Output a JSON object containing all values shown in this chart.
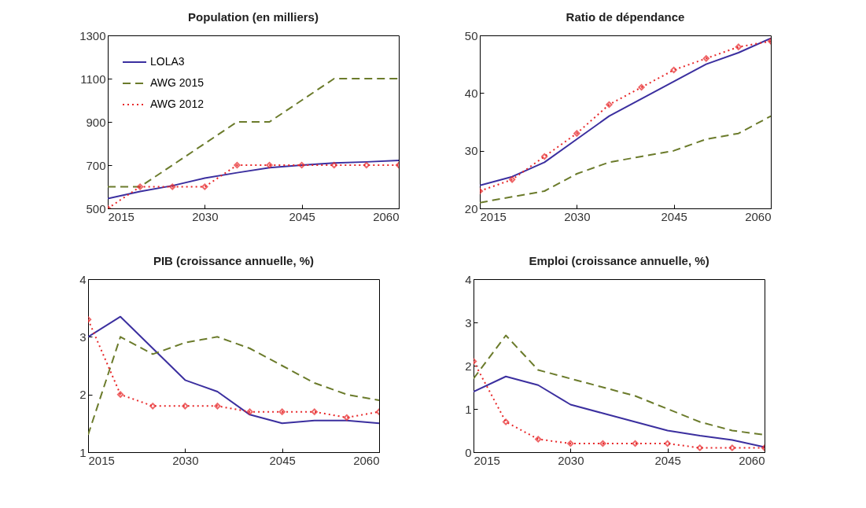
{
  "chart_data": [
    {
      "type": "line",
      "title": "Population (en milliers)",
      "x": [
        2015,
        2020,
        2025,
        2030,
        2035,
        2040,
        2045,
        2050,
        2055,
        2060
      ],
      "xlim": [
        2015,
        2060
      ],
      "xticks": [
        2015,
        2030,
        2045,
        2060
      ],
      "ylim": [
        500,
        1300
      ],
      "yticks": [
        500,
        700,
        900,
        1100,
        1300
      ],
      "grid": false,
      "legend": "top left",
      "series": [
        {
          "name": "LOLA3",
          "color": "#3b2f9f",
          "line_style": "solid",
          "marker": "none",
          "values": [
            545,
            578,
            605,
            640,
            665,
            688,
            700,
            710,
            715,
            722
          ]
        },
        {
          "name": "AWG 2015",
          "color": "#6b7b2b",
          "line_style": "dashed",
          "marker": "none",
          "values": [
            600,
            600,
            700,
            800,
            900,
            900,
            1000,
            1100,
            1100,
            1100
          ]
        },
        {
          "name": "AWG 2012",
          "color": "#e8282a",
          "line_style": "dotted",
          "marker": "diamond",
          "values": [
            500,
            600,
            600,
            600,
            700,
            700,
            700,
            700,
            700,
            700
          ]
        }
      ]
    },
    {
      "type": "line",
      "title": "Ratio de dépendance",
      "x": [
        2015,
        2020,
        2025,
        2030,
        2035,
        2040,
        2045,
        2050,
        2055,
        2060
      ],
      "xlim": [
        2015,
        2060
      ],
      "xticks": [
        2015,
        2030,
        2045,
        2060
      ],
      "ylim": [
        20,
        50
      ],
      "yticks": [
        20,
        30,
        40,
        50
      ],
      "grid": false,
      "series": [
        {
          "color": "#3b2f9f",
          "line_style": "solid",
          "marker": "none",
          "values": [
            24,
            25.5,
            28,
            32,
            36,
            39,
            42,
            45,
            47,
            49.5
          ]
        },
        {
          "color": "#6b7b2b",
          "line_style": "dashed",
          "marker": "none",
          "values": [
            21,
            22,
            23,
            26,
            28,
            29,
            30,
            32,
            33,
            36
          ]
        },
        {
          "color": "#e8282a",
          "line_style": "dotted",
          "marker": "diamond",
          "values": [
            23,
            25,
            29,
            33,
            38,
            41,
            44,
            46,
            48,
            49
          ]
        }
      ]
    },
    {
      "type": "line",
      "title": "PIB (croissance annuelle, %)",
      "x": [
        2015,
        2020,
        2025,
        2030,
        2035,
        2040,
        2045,
        2050,
        2055,
        2060
      ],
      "xlim": [
        2015,
        2060
      ],
      "xticks": [
        2015,
        2030,
        2045,
        2060
      ],
      "ylim": [
        1,
        4
      ],
      "yticks": [
        1,
        2,
        3,
        4
      ],
      "grid": false,
      "series": [
        {
          "color": "#3b2f9f",
          "line_style": "solid",
          "marker": "none",
          "values": [
            3.0,
            3.35,
            2.8,
            2.25,
            2.05,
            1.65,
            1.5,
            1.55,
            1.55,
            1.5
          ]
        },
        {
          "color": "#6b7b2b",
          "line_style": "dashed",
          "marker": "none",
          "values": [
            1.3,
            3.0,
            2.7,
            2.9,
            3.0,
            2.8,
            2.5,
            2.2,
            2.0,
            1.9
          ]
        },
        {
          "color": "#e8282a",
          "line_style": "dotted",
          "marker": "diamond",
          "values": [
            3.3,
            2.0,
            1.8,
            1.8,
            1.8,
            1.7,
            1.7,
            1.7,
            1.6,
            1.7
          ]
        }
      ]
    },
    {
      "type": "line",
      "title": "Emploi (croissance annuelle, %)",
      "x": [
        2015,
        2020,
        2025,
        2030,
        2035,
        2040,
        2045,
        2050,
        2055,
        2060
      ],
      "xlim": [
        2015,
        2060
      ],
      "xticks": [
        2015,
        2030,
        2045,
        2060
      ],
      "ylim": [
        0,
        4
      ],
      "yticks": [
        0,
        1,
        2,
        3,
        4
      ],
      "grid": false,
      "series": [
        {
          "color": "#3b2f9f",
          "line_style": "solid",
          "marker": "none",
          "values": [
            1.4,
            1.75,
            1.55,
            1.1,
            0.9,
            0.7,
            0.5,
            0.38,
            0.28,
            0.12
          ]
        },
        {
          "color": "#6b7b2b",
          "line_style": "dashed",
          "marker": "none",
          "values": [
            1.7,
            2.7,
            1.9,
            1.7,
            1.5,
            1.3,
            1.0,
            0.7,
            0.5,
            0.4
          ]
        },
        {
          "color": "#e8282a",
          "line_style": "dotted",
          "marker": "diamond",
          "values": [
            2.1,
            0.7,
            0.3,
            0.2,
            0.2,
            0.2,
            0.2,
            0.1,
            0.1,
            0.1
          ]
        }
      ]
    }
  ]
}
